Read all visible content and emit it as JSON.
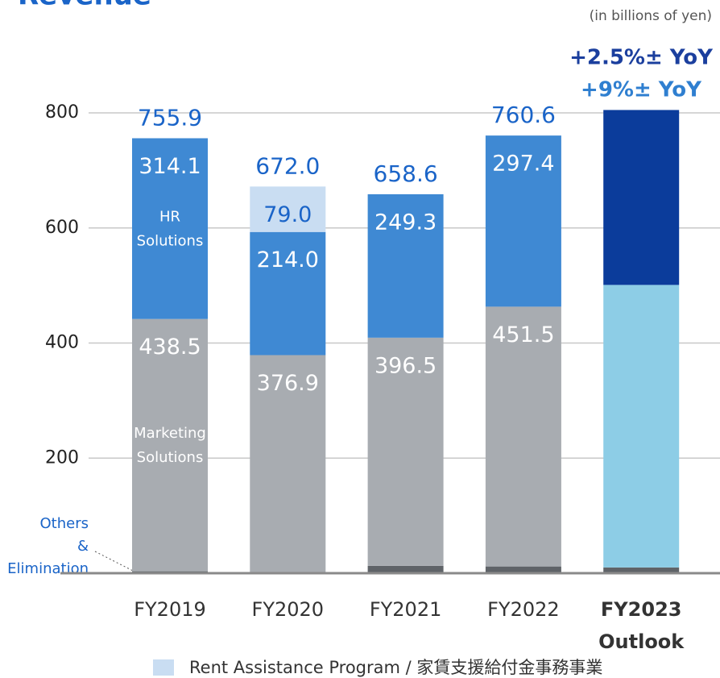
{
  "chart_data": {
    "type": "stacked_bar",
    "title": "Revenue",
    "unit": "(in billions of yen)",
    "annotations": [
      {
        "text": "+2.5%± YoY",
        "color": "#1b3f9e"
      },
      {
        "text": "+9%± YoY",
        "color": "#2f7fd0"
      }
    ],
    "categories": [
      "FY2019",
      "FY2020",
      "FY2021",
      "FY2022",
      "FY2023 Outlook"
    ],
    "highlight_index": 4,
    "series": [
      {
        "name": "Others & Elimination",
        "colors": [
          "#5f6368",
          "#5f6368",
          "#5f6368",
          "#5f6368",
          "#5f6368"
        ],
        "values": [
          3.3,
          2.1,
          12.8,
          11.7,
          10
        ],
        "value_labels": [
          null,
          null,
          null,
          null,
          null
        ],
        "label_place": "left"
      },
      {
        "name": "Marketing Solutions",
        "colors": [
          "#a8acb1",
          "#a8acb1",
          "#a8acb1",
          "#a8acb1",
          "#8dcde6"
        ],
        "values": [
          438.5,
          376.9,
          396.5,
          451.5,
          491
        ],
        "value_labels": [
          "438.5",
          "376.9",
          "396.5",
          "451.5",
          null
        ],
        "label_place": "inside"
      },
      {
        "name": "HR Solutions",
        "colors": [
          "#3f89d3",
          "#3f89d3",
          "#3f89d3",
          "#3f89d3",
          "#0b3c9b"
        ],
        "values": [
          314.1,
          214.0,
          249.3,
          297.4,
          304
        ],
        "value_labels": [
          "314.1",
          "214.0",
          "249.3",
          "297.4",
          null
        ],
        "label_place": "inside"
      },
      {
        "name": "Rent Assistance Program / 家賃支援給付金事務事業",
        "colors": [
          null,
          "#c9ddf2",
          null,
          null,
          null
        ],
        "values": [
          null,
          79.0,
          null,
          null,
          null
        ],
        "value_labels": [
          null,
          "79.0",
          null,
          null,
          null
        ],
        "label_place": "legend"
      }
    ],
    "totals": {
      "values": [
        755.9,
        672.0,
        658.6,
        760.6,
        null
      ],
      "value_labels": [
        "755.9",
        "672.0",
        "658.6",
        "760.6",
        null
      ]
    },
    "ylim": [
      0,
      800
    ],
    "yticks": [
      200,
      400,
      600,
      800
    ],
    "grid": true
  }
}
